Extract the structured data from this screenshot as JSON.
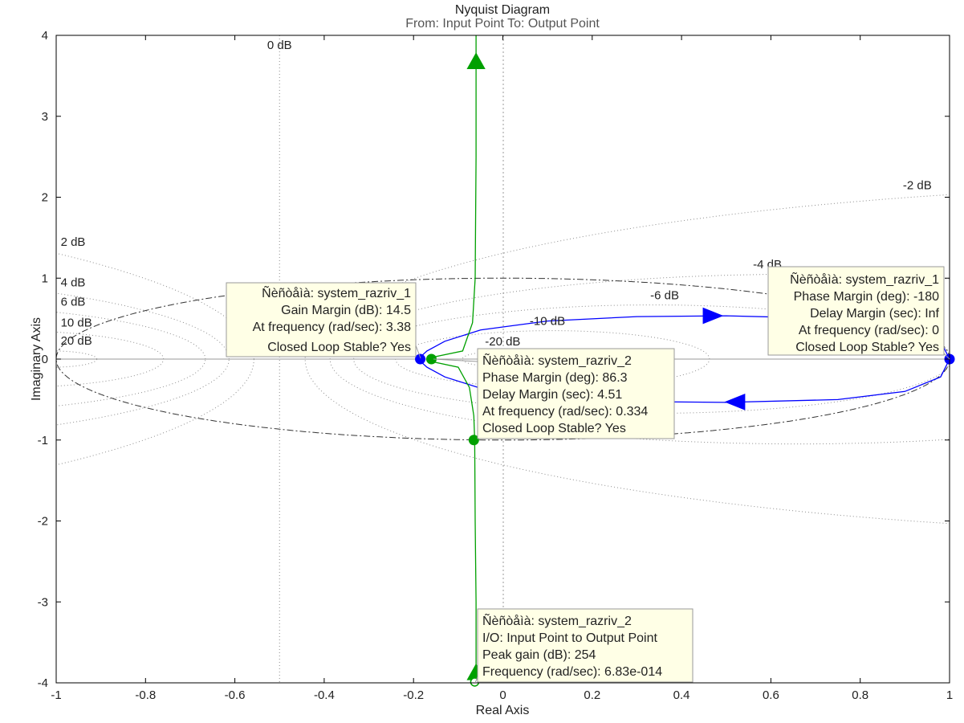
{
  "chart_data": {
    "type": "line",
    "title": "Nyquist Diagram",
    "subtitle": "From: Input Point  To: Output Point",
    "xlabel": "Real Axis",
    "ylabel": "Imaginary Axis",
    "xlim": [
      -1,
      1
    ],
    "ylim": [
      -4,
      4
    ],
    "x_ticks": [
      "-1",
      "-0.8",
      "-0.6",
      "-0.4",
      "-0.2",
      "0",
      "0.2",
      "0.4",
      "0.6",
      "0.8",
      "1"
    ],
    "y_ticks": [
      "-4",
      "-3",
      "-2",
      "-1",
      "0",
      "1",
      "2",
      "3",
      "4"
    ],
    "grid": "M-circles (constant closed-loop gain)",
    "colors": {
      "system_1": "#0000ff",
      "system_2": "#00a000",
      "grid": "#8c8c8c",
      "axes": "#000000"
    },
    "m_circle_labels": [
      "0 dB",
      "2 dB",
      "4 dB",
      "6 dB",
      "10 dB",
      "20 dB",
      "-2 dB",
      "-4 dB",
      "-6 dB",
      "-10 dB",
      "-20 dB"
    ],
    "series": [
      {
        "key": "system_1",
        "points": [
          [
            1.0,
            0.0
          ],
          [
            0.98,
            -0.22
          ],
          [
            0.9,
            -0.4
          ],
          [
            0.75,
            -0.5
          ],
          [
            0.5,
            -0.535
          ],
          [
            0.3,
            -0.525
          ],
          [
            0.1,
            -0.47
          ],
          [
            -0.05,
            -0.36
          ],
          [
            -0.13,
            -0.22
          ],
          [
            -0.17,
            -0.1
          ],
          [
            -0.19,
            0.0
          ],
          [
            -0.17,
            0.1
          ],
          [
            -0.13,
            0.22
          ],
          [
            -0.05,
            0.36
          ],
          [
            0.1,
            0.47
          ],
          [
            0.3,
            0.525
          ],
          [
            0.5,
            0.535
          ],
          [
            0.75,
            0.5
          ],
          [
            0.9,
            0.4
          ],
          [
            0.98,
            0.22
          ],
          [
            1.0,
            0.0
          ]
        ]
      },
      {
        "key": "system_2",
        "points": [
          [
            -0.06,
            4.0
          ],
          [
            -0.06,
            2.5
          ],
          [
            -0.062,
            1.0
          ],
          [
            -0.068,
            0.45
          ],
          [
            -0.09,
            0.1
          ],
          [
            -0.16,
            0.02
          ],
          [
            -0.17,
            0.0
          ],
          [
            -0.16,
            -0.03
          ],
          [
            -0.1,
            -0.1
          ],
          [
            -0.075,
            -0.35
          ],
          [
            -0.065,
            -0.7
          ],
          [
            -0.063,
            -1.0
          ],
          [
            -0.062,
            -2.0
          ],
          [
            -0.06,
            -3.0
          ],
          [
            -0.06,
            -4.0
          ]
        ]
      }
    ],
    "markers": [
      {
        "series": "system_1",
        "x": -0.185,
        "y": 0.0,
        "shape": "dot"
      },
      {
        "series": "system_1",
        "x": 1.0,
        "y": 0.0,
        "shape": "dot"
      },
      {
        "series": "system_2",
        "x": -0.16,
        "y": 0.0,
        "shape": "dot"
      },
      {
        "series": "system_2",
        "x": -0.065,
        "y": -1.0,
        "shape": "dot"
      },
      {
        "series": "system_2",
        "x": -0.063,
        "y": -3.99,
        "shape": "ring"
      }
    ],
    "annotations": [
      {
        "key": "gain_margin_sys1",
        "lines": [
          "Ñèñòåìà: system_razriv_1",
          "Gain Margin (dB): 14.5",
          "At frequency (rad/sec): 3.38",
          "Closed Loop Stable? Yes"
        ],
        "align": "right"
      },
      {
        "key": "phase_margin_sys1",
        "lines": [
          "Ñèñòåìà: system_razriv_1",
          "Phase Margin (deg): -180",
          "Delay Margin (sec): Inf",
          "At frequency (rad/sec): 0",
          "Closed Loop Stable? Yes"
        ],
        "align": "right"
      },
      {
        "key": "phase_margin_sys2",
        "lines": [
          "Ñèñòåìà: system_razriv_2",
          "Phase Margin (deg): 86.3",
          "Delay Margin (sec): 4.51",
          "At frequency (rad/sec): 0.334",
          "Closed Loop Stable? Yes"
        ],
        "align": "left"
      },
      {
        "key": "peak_gain_sys2",
        "lines": [
          "Ñèñòåìà: system_razriv_2",
          "I/O: Input Point to Output Point",
          "Peak gain (dB): 254",
          "Frequency (rad/sec): 6.83e-014"
        ],
        "align": "left"
      }
    ]
  }
}
